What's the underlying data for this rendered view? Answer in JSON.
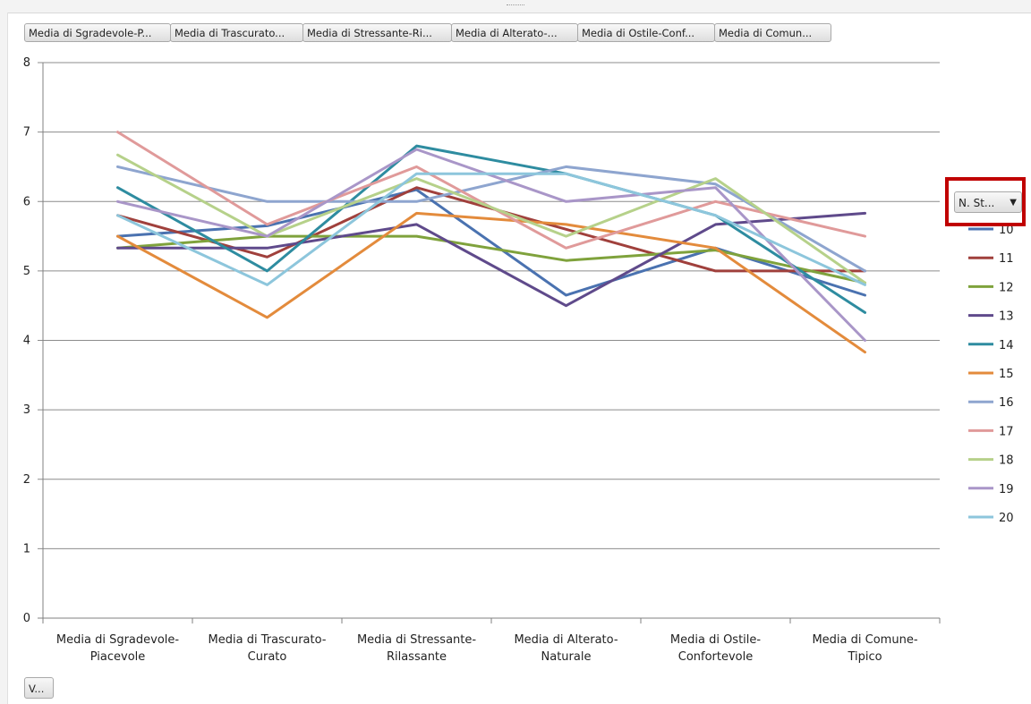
{
  "filter_buttons": [
    "Media di Sgradevole-P...",
    "Media di Trascurato...",
    "Media di Stressante-Ri...",
    "Media di Alterato-...",
    "Media di Ostile-Conf...",
    "Media di Comun..."
  ],
  "legend_field_button": {
    "label": "N. St...",
    "icon": "dropdown-arrow-icon"
  },
  "axis_field_button": {
    "label": "V..."
  },
  "highlight_color": "#c00000",
  "chart_data": {
    "type": "line",
    "categories": [
      "Media di Sgradevole-Piacevole",
      "Media di Trascurato-Curato",
      "Media di Stressante-Rilassante",
      "Media di Alterato-Naturale",
      "Media di Ostile-Confortevole",
      "Media di Comune-Tipico"
    ],
    "category_lines": [
      [
        "Media di Sgradevole-",
        "Piacevole"
      ],
      [
        "Media di Trascurato-",
        "Curato"
      ],
      [
        "Media di Stressante-",
        "Rilassante"
      ],
      [
        "Media di Alterato-",
        "Naturale"
      ],
      [
        "Media di Ostile-",
        "Confortevole"
      ],
      [
        "Media di Comune-",
        "Tipico"
      ]
    ],
    "ylim": [
      0,
      8
    ],
    "yticks": [
      "0",
      "1",
      "2",
      "3",
      "4",
      "5",
      "6",
      "7",
      "8"
    ],
    "grid": true,
    "legend_position": "right",
    "series": [
      {
        "name": "10",
        "color": "#4a72b0",
        "values": [
          5.5,
          5.65,
          6.17,
          4.65,
          5.33,
          4.65
        ]
      },
      {
        "name": "11",
        "color": "#a0403c",
        "values": [
          5.8,
          5.2,
          6.2,
          5.6,
          5.0,
          5.0
        ]
      },
      {
        "name": "12",
        "color": "#7fa23c",
        "values": [
          5.33,
          5.5,
          5.5,
          5.15,
          5.3,
          4.83
        ]
      },
      {
        "name": "13",
        "color": "#5f4a8b",
        "values": [
          5.33,
          5.33,
          5.67,
          4.5,
          5.67,
          5.83
        ]
      },
      {
        "name": "14",
        "color": "#2e8ca0",
        "values": [
          6.2,
          5.0,
          6.8,
          6.4,
          5.8,
          4.4
        ]
      },
      {
        "name": "15",
        "color": "#e38b3c",
        "values": [
          5.5,
          4.33,
          5.83,
          5.67,
          5.33,
          3.83
        ]
      },
      {
        "name": "16",
        "color": "#8ea5cf",
        "values": [
          6.5,
          6.0,
          6.0,
          6.5,
          6.25,
          5.0
        ]
      },
      {
        "name": "17",
        "color": "#e09a9a",
        "values": [
          7.0,
          5.67,
          6.5,
          5.33,
          6.0,
          5.5
        ]
      },
      {
        "name": "18",
        "color": "#b6d18a",
        "values": [
          6.67,
          5.5,
          6.33,
          5.5,
          6.33,
          4.83
        ]
      },
      {
        "name": "19",
        "color": "#a996c8",
        "values": [
          6.0,
          5.5,
          6.75,
          6.0,
          6.2,
          4.0
        ]
      },
      {
        "name": "20",
        "color": "#8dc6dc",
        "values": [
          5.8,
          4.8,
          6.4,
          6.4,
          5.8,
          4.8
        ]
      }
    ]
  }
}
